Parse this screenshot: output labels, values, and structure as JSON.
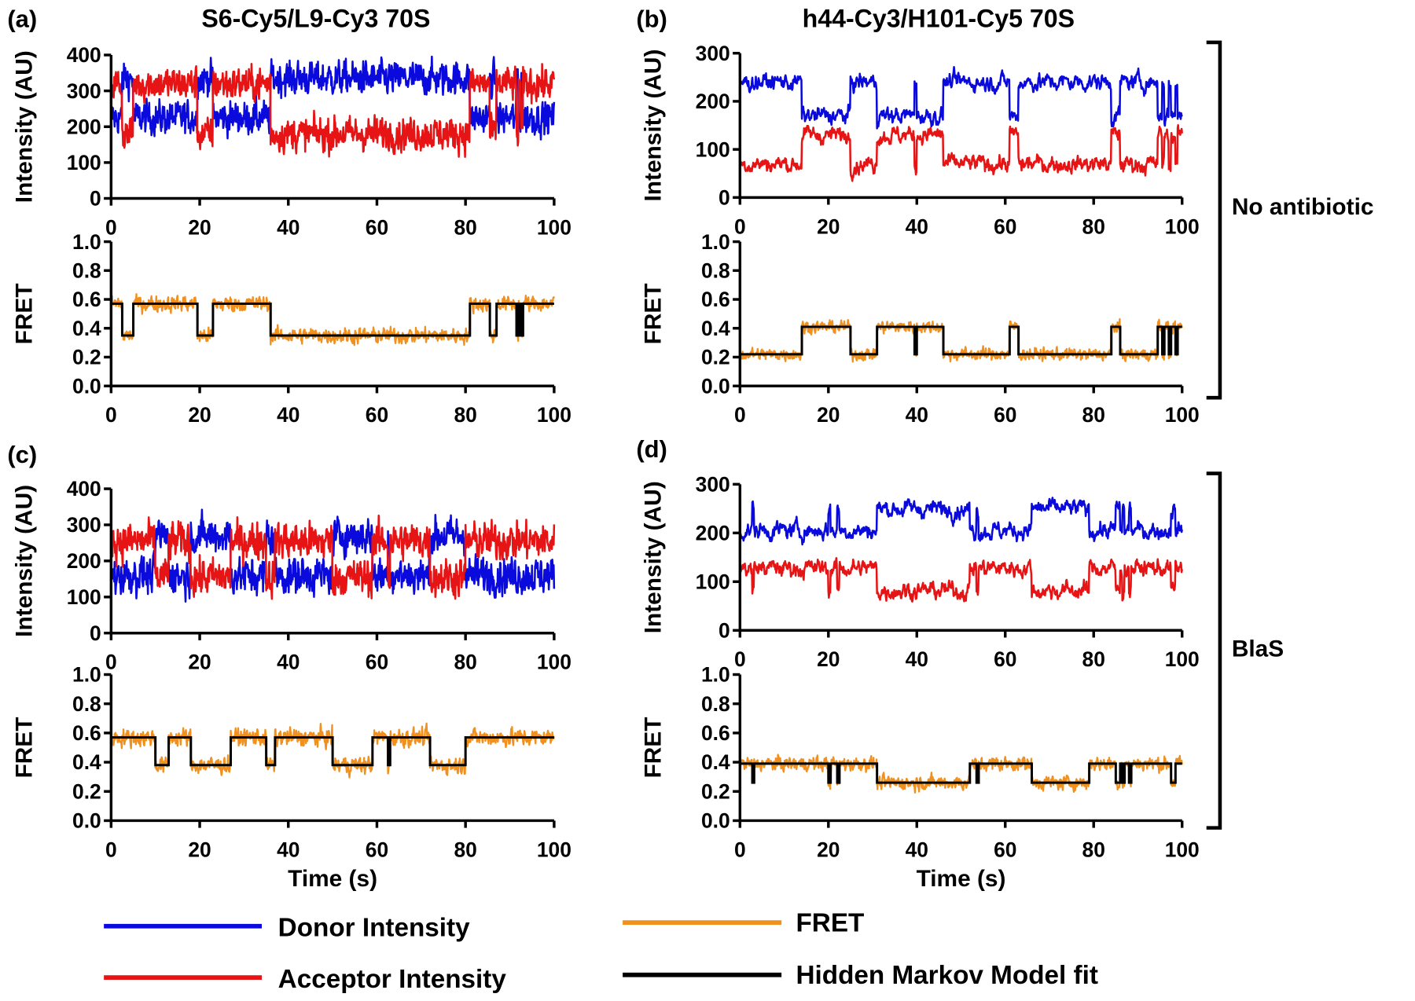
{
  "colors": {
    "donor": "#0a0adc",
    "acceptor": "#e61414",
    "fret": "#f0901e",
    "hmm": "#000000",
    "donor_text": "#1a2ac8",
    "acceptor_text": "#e82020",
    "fret_text": "#e8902a"
  },
  "titles": {
    "left": "S6-Cy5/L9-Cy3 70S",
    "right": "h44-Cy3/H101-Cy5 70S"
  },
  "conditions": {
    "top": "No antibiotic",
    "bottom": "BlaS"
  },
  "legend": {
    "donor": "Donor Intensity",
    "acceptor": "Acceptor Intensity",
    "fret": "FRET",
    "hmm": "Hidden Markov Model fit"
  },
  "chart_data": [
    {
      "panel": "(a)",
      "type": "line",
      "xlabel": "",
      "xlim": [
        0,
        100
      ],
      "xticks": [
        "0",
        "20",
        "40",
        "60",
        "80",
        "100"
      ],
      "intensity": {
        "ylabel": "Intensity (AU)",
        "ylim": [
          0,
          400
        ],
        "yticks": [
          "0",
          "100",
          "200",
          "300",
          "400"
        ],
        "noise": 45,
        "smooth": 0.3
      },
      "fret": {
        "ylabel": "FRET",
        "ylim": [
          0,
          1
        ],
        "yticks": [
          "0.0",
          "0.2",
          "0.4",
          "0.6",
          "0.8",
          "1.0"
        ],
        "noise": 0.045
      },
      "states": [
        {
          "fret": 0.57,
          "donor": 225,
          "acceptor": 320
        },
        {
          "fret": 0.35,
          "donor": 335,
          "acceptor": 180
        }
      ],
      "hmm_segments": [
        [
          0,
          0
        ],
        [
          2.5,
          1
        ],
        [
          5,
          0
        ],
        [
          19.5,
          1
        ],
        [
          23,
          0
        ],
        [
          36,
          1
        ],
        [
          81,
          0
        ],
        [
          85.5,
          1
        ],
        [
          87,
          0
        ],
        [
          91.5,
          1
        ],
        [
          92,
          0
        ],
        [
          92.5,
          1
        ],
        [
          93,
          0
        ]
      ]
    },
    {
      "panel": "(b)",
      "type": "line",
      "xlabel": "",
      "xlim": [
        0,
        100
      ],
      "xticks": [
        "0",
        "20",
        "40",
        "60",
        "80",
        "100"
      ],
      "intensity": {
        "ylabel": "Intensity (AU)",
        "ylim": [
          0,
          300
        ],
        "yticks": [
          "0",
          "100",
          "200",
          "300"
        ],
        "noise": 16,
        "smooth": 0.75
      },
      "fret": {
        "ylabel": "FRET",
        "ylim": [
          0,
          1
        ],
        "yticks": [
          "0.0",
          "0.2",
          "0.4",
          "0.6",
          "0.8",
          "1.0"
        ],
        "noise": 0.035
      },
      "states": [
        {
          "fret": 0.22,
          "donor": 240,
          "acceptor": 70
        },
        {
          "fret": 0.41,
          "donor": 170,
          "acceptor": 130
        }
      ],
      "hmm_segments": [
        [
          0,
          0
        ],
        [
          14,
          1
        ],
        [
          25,
          0
        ],
        [
          31,
          1
        ],
        [
          39.5,
          0
        ],
        [
          40,
          1
        ],
        [
          46,
          0
        ],
        [
          61,
          1
        ],
        [
          63,
          0
        ],
        [
          84,
          1
        ],
        [
          86,
          0
        ],
        [
          94.5,
          1
        ],
        [
          95.5,
          0
        ],
        [
          96,
          1
        ],
        [
          97,
          0
        ],
        [
          97.5,
          1
        ],
        [
          98.5,
          0
        ],
        [
          99,
          1
        ]
      ]
    },
    {
      "panel": "(c)",
      "type": "line",
      "xlabel": "Time (s)",
      "xlim": [
        0,
        100
      ],
      "xticks": [
        "0",
        "20",
        "40",
        "60",
        "80",
        "100"
      ],
      "intensity": {
        "ylabel": "Intensity (AU)",
        "ylim": [
          0,
          400
        ],
        "yticks": [
          "0",
          "100",
          "200",
          "300",
          "400"
        ],
        "noise": 50,
        "smooth": 0.3
      },
      "fret": {
        "ylabel": "FRET",
        "ylim": [
          0,
          1
        ],
        "yticks": [
          "0.0",
          "0.2",
          "0.4",
          "0.6",
          "0.8",
          "1.0"
        ],
        "noise": 0.05
      },
      "states": [
        {
          "fret": 0.57,
          "donor": 160,
          "acceptor": 255
        },
        {
          "fret": 0.38,
          "donor": 270,
          "acceptor": 155
        }
      ],
      "hmm_segments": [
        [
          0,
          0
        ],
        [
          10,
          1
        ],
        [
          13,
          0
        ],
        [
          18,
          1
        ],
        [
          27,
          0
        ],
        [
          35,
          1
        ],
        [
          37,
          0
        ],
        [
          50,
          1
        ],
        [
          59,
          0
        ],
        [
          62.5,
          1
        ],
        [
          63,
          0
        ],
        [
          72,
          1
        ],
        [
          80,
          0
        ]
      ]
    },
    {
      "panel": "(d)",
      "type": "line",
      "xlabel": "Time (s)",
      "xlim": [
        0,
        100
      ],
      "xticks": [
        "0",
        "20",
        "40",
        "60",
        "80",
        "100"
      ],
      "intensity": {
        "ylabel": "Intensity (AU)",
        "ylim": [
          0,
          300
        ],
        "yticks": [
          "0",
          "100",
          "200",
          "300"
        ],
        "noise": 16,
        "smooth": 0.75
      },
      "fret": {
        "ylabel": "FRET",
        "ylim": [
          0,
          1
        ],
        "yticks": [
          "0.0",
          "0.2",
          "0.4",
          "0.6",
          "0.8",
          "1.0"
        ],
        "noise": 0.04
      },
      "states": [
        {
          "fret": 0.39,
          "donor": 205,
          "acceptor": 128
        },
        {
          "fret": 0.26,
          "donor": 250,
          "acceptor": 82
        }
      ],
      "hmm_segments": [
        [
          0,
          0
        ],
        [
          2.8,
          1
        ],
        [
          3.2,
          0
        ],
        [
          20,
          1
        ],
        [
          20.5,
          0
        ],
        [
          22,
          1
        ],
        [
          22.5,
          0
        ],
        [
          31,
          1
        ],
        [
          52,
          0
        ],
        [
          53.5,
          1
        ],
        [
          54,
          0
        ],
        [
          66,
          1
        ],
        [
          79,
          0
        ],
        [
          85,
          1
        ],
        [
          86,
          0
        ],
        [
          86.5,
          1
        ],
        [
          87,
          0
        ],
        [
          88,
          1
        ],
        [
          88.5,
          0
        ],
        [
          97.5,
          1
        ],
        [
          98.5,
          0
        ]
      ]
    }
  ]
}
